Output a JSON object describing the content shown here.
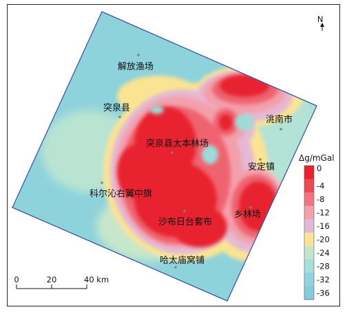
{
  "north_label": "N",
  "places": [
    {
      "id": "jiefang",
      "name": "解放渔场"
    },
    {
      "id": "tuquan",
      "name": "突泉县"
    },
    {
      "id": "taoan",
      "name": "洮南市"
    },
    {
      "id": "taiben",
      "name": "突泉县太本林场"
    },
    {
      "id": "anding",
      "name": "安定镇"
    },
    {
      "id": "keyou",
      "name": "科尔沁右翼中旗"
    },
    {
      "id": "xiang",
      "name": "乡林场"
    },
    {
      "id": "shabu",
      "name": "沙布日台套布"
    },
    {
      "id": "hatai",
      "name": "哈太庙窝铺"
    }
  ],
  "legend": {
    "title": "Δg/mGal",
    "ticks": [
      "0",
      "-4",
      "-8",
      "-12",
      "-16",
      "-20",
      "-24",
      "-28",
      "-32",
      "-36"
    ],
    "colors": [
      "#e8232e",
      "#ec4a56",
      "#f17580",
      "#f3a0ab",
      "#e4b9d6",
      "#fae492",
      "#c4e6cd",
      "#a6dfdc",
      "#8fd3df",
      "#82ccdc"
    ]
  },
  "scale": {
    "ticks": [
      "0",
      "20",
      "40 km"
    ]
  },
  "colors": {
    "low": "#8ed2dc",
    "high": "#e8232e",
    "neutral": "#c4e6cd",
    "transition": "#fae492",
    "frame": "#222222"
  }
}
